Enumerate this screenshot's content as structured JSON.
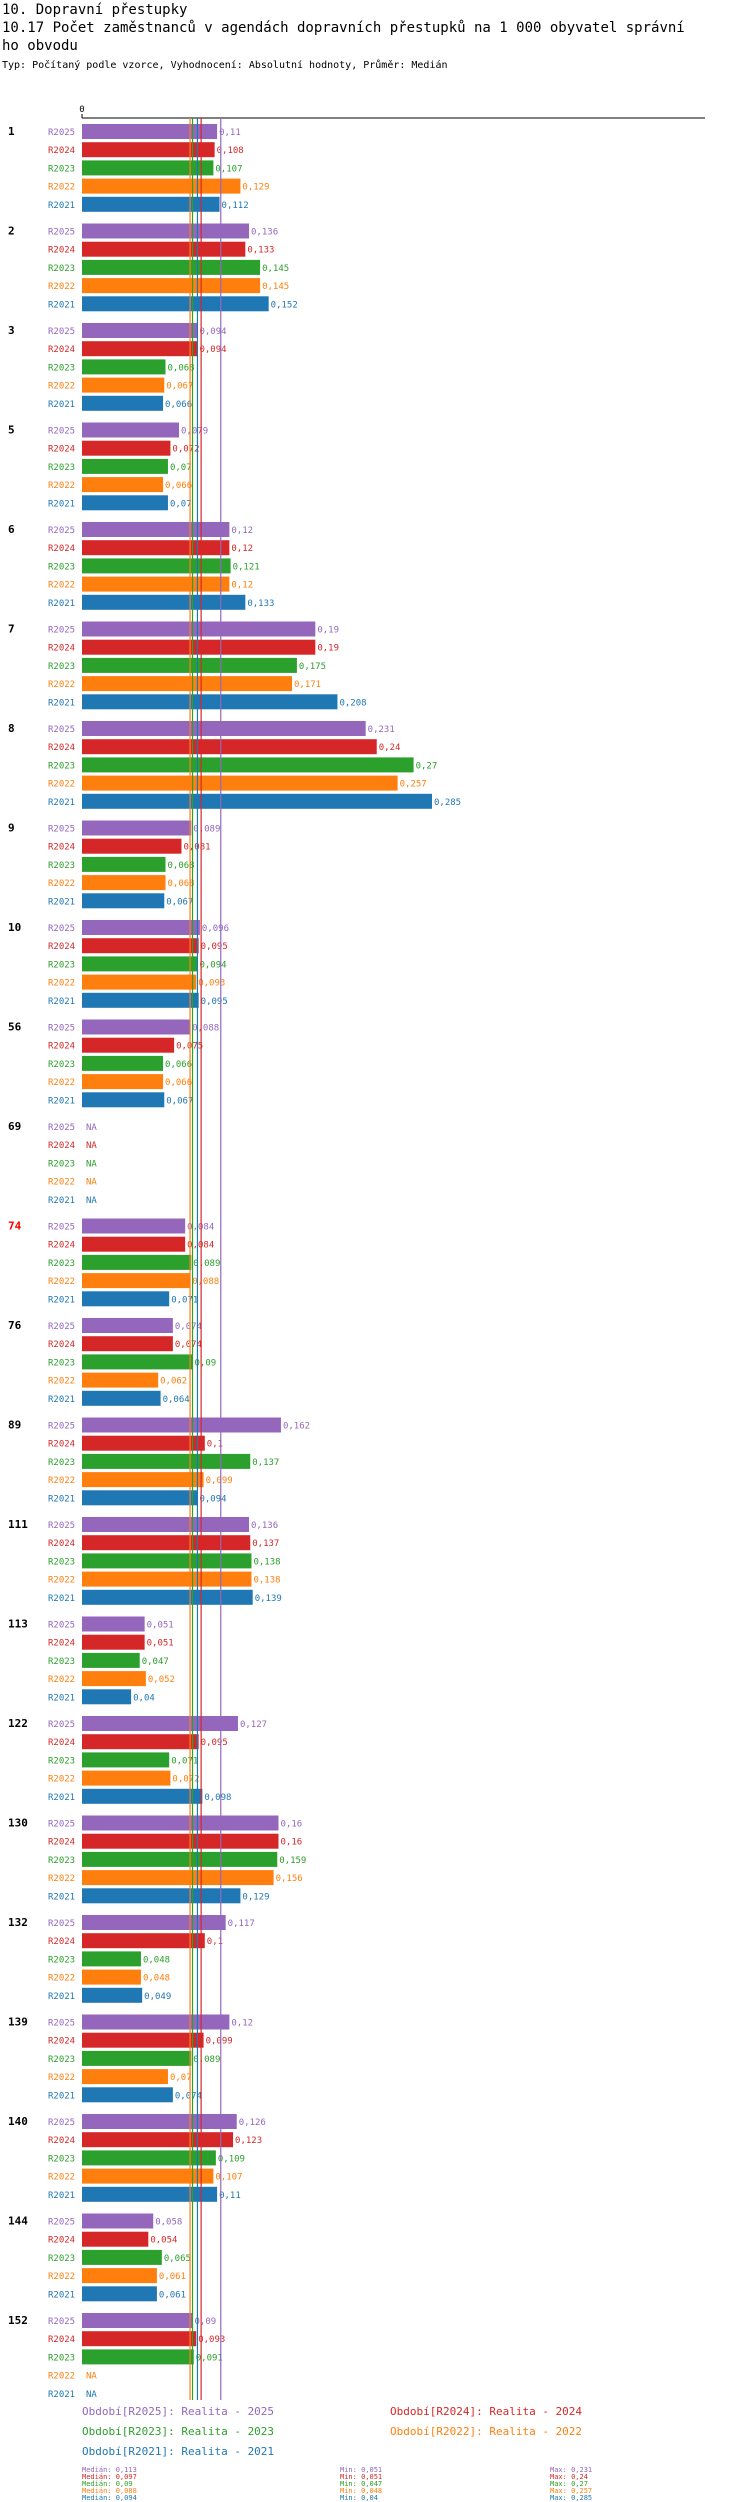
{
  "header": {
    "title_line1": "10. Dopravní přestupky",
    "title_line2": "10.17 Počet zaměstnanců v agendách dopravních přestupků na 1 000 obyvatel správní",
    "title_line3": "ho obvodu",
    "subtitle": "Typ: Počítaný podle vzorce, Vyhodnocení: Absolutní hodnoty, Průměr: Medián"
  },
  "colors": {
    "R2025": "#9467bd",
    "R2024": "#d62728",
    "R2023": "#2ca02c",
    "R2022": "#ff7f0e",
    "R2021": "#1f77b4",
    "highlight_label": "#ff0000"
  },
  "chart_data": {
    "type": "bar",
    "orientation": "horizontal",
    "axis_zero_label": "0",
    "na_label": "NA",
    "series_order": [
      "R2025",
      "R2024",
      "R2023",
      "R2022",
      "R2021"
    ],
    "groups": [
      {
        "label": "1",
        "values": [
          0.11,
          0.108,
          0.107,
          0.129,
          0.112
        ],
        "highlight": false
      },
      {
        "label": "2",
        "values": [
          0.136,
          0.133,
          0.145,
          0.145,
          0.152
        ],
        "highlight": false
      },
      {
        "label": "3",
        "values": [
          0.094,
          0.094,
          0.068,
          0.067,
          0.066
        ],
        "highlight": false
      },
      {
        "label": "5",
        "values": [
          0.079,
          0.072,
          0.07,
          0.066,
          0.07
        ],
        "highlight": false
      },
      {
        "label": "6",
        "values": [
          0.12,
          0.12,
          0.121,
          0.12,
          0.133
        ],
        "highlight": false
      },
      {
        "label": "7",
        "values": [
          0.19,
          0.19,
          0.175,
          0.171,
          0.208
        ],
        "highlight": false
      },
      {
        "label": "8",
        "values": [
          0.231,
          0.24,
          0.27,
          0.257,
          0.285
        ],
        "highlight": false
      },
      {
        "label": "9",
        "values": [
          0.089,
          0.081,
          0.068,
          0.068,
          0.067
        ],
        "highlight": false
      },
      {
        "label": "10",
        "values": [
          0.096,
          0.095,
          0.094,
          0.093,
          0.095
        ],
        "highlight": false
      },
      {
        "label": "56",
        "values": [
          0.088,
          0.075,
          0.066,
          0.066,
          0.067
        ],
        "highlight": false
      },
      {
        "label": "69",
        "values": [
          null,
          null,
          null,
          null,
          null
        ],
        "highlight": false
      },
      {
        "label": "74",
        "values": [
          0.084,
          0.084,
          0.089,
          0.088,
          0.071
        ],
        "highlight": true
      },
      {
        "label": "76",
        "values": [
          0.074,
          0.074,
          0.09,
          0.062,
          0.064
        ],
        "highlight": false
      },
      {
        "label": "89",
        "values": [
          0.162,
          0.1,
          0.137,
          0.099,
          0.094
        ],
        "highlight": false
      },
      {
        "label": "111",
        "values": [
          0.136,
          0.137,
          0.138,
          0.138,
          0.139
        ],
        "highlight": false
      },
      {
        "label": "113",
        "values": [
          0.051,
          0.051,
          0.047,
          0.052,
          0.04
        ],
        "highlight": false
      },
      {
        "label": "122",
        "values": [
          0.127,
          0.095,
          0.071,
          0.072,
          0.098
        ],
        "highlight": false
      },
      {
        "label": "130",
        "values": [
          0.16,
          0.16,
          0.159,
          0.156,
          0.129
        ],
        "highlight": false
      },
      {
        "label": "132",
        "values": [
          0.117,
          0.1,
          0.048,
          0.048,
          0.049
        ],
        "highlight": false
      },
      {
        "label": "139",
        "values": [
          0.12,
          0.099,
          0.089,
          0.07,
          0.074
        ],
        "highlight": false
      },
      {
        "label": "140",
        "values": [
          0.126,
          0.123,
          0.109,
          0.107,
          0.11
        ],
        "highlight": false
      },
      {
        "label": "144",
        "values": [
          0.058,
          0.054,
          0.065,
          0.061,
          0.061
        ],
        "highlight": false
      },
      {
        "label": "152",
        "values": [
          0.09,
          0.093,
          0.091,
          null,
          null
        ],
        "highlight": false
      }
    ],
    "medians": {
      "R2025": 0.113,
      "R2024": 0.097,
      "R2023": 0.09,
      "R2022": 0.088,
      "R2021": 0.094
    },
    "xlim": [
      0,
      0.3
    ]
  },
  "legend": [
    {
      "key": "R2025",
      "text": "Období[R2025]: Realita - 2025"
    },
    {
      "key": "R2024",
      "text": "Období[R2024]: Realita - 2024"
    },
    {
      "key": "R2023",
      "text": "Období[R2023]: Realita - 2023"
    },
    {
      "key": "R2022",
      "text": "Období[R2022]: Realita - 2022"
    },
    {
      "key": "R2021",
      "text": "Období[R2021]: Realita - 2021"
    }
  ],
  "stats": [
    {
      "key": "R2025",
      "median": "Medián: 0,113",
      "min": "Min: 0,051",
      "max": "Max: 0,231"
    },
    {
      "key": "R2024",
      "median": "Medián: 0,097",
      "min": "Min: 0,051",
      "max": "Max: 0,24"
    },
    {
      "key": "R2023",
      "median": "Medián: 0,09",
      "min": "Min: 0,047",
      "max": "Max: 0,27"
    },
    {
      "key": "R2022",
      "median": "Medián: 0,088",
      "min": "Min: 0,048",
      "max": "Max: 0,257"
    },
    {
      "key": "R2021",
      "median": "Medián: 0,094",
      "min": "Min: 0,04",
      "max": "Max: 0,285"
    }
  ]
}
